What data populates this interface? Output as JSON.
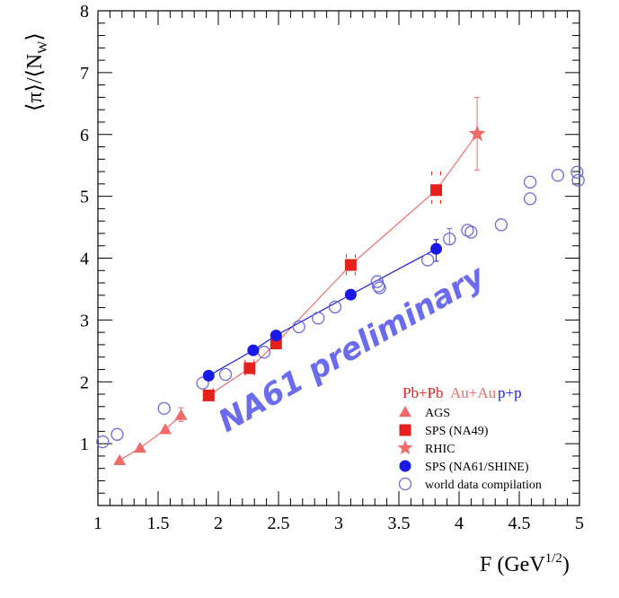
{
  "chart_data": {
    "type": "scatter",
    "xlabel": "F (GeV",
    "xlabel_sup": "1/2",
    "xlabel_end": ")",
    "ylabel": "⟨π⟩/⟨N",
    "ylabel_sub": "W",
    "ylabel_end": "⟩",
    "xlim": [
      1,
      5
    ],
    "ylim": [
      0,
      8
    ],
    "x_ticks": [
      "1",
      "1.5",
      "2",
      "2.5",
      "3",
      "3.5",
      "4",
      "4.5",
      "5"
    ],
    "y_ticks": [
      "1",
      "2",
      "3",
      "4",
      "5",
      "6",
      "7",
      "8"
    ],
    "watermark": "NA61 preliminary",
    "legend_header": [
      {
        "text": "Pb+Pb",
        "color": "#e8201c"
      },
      {
        "text": "Au+Au",
        "color": "#f06a6a"
      },
      {
        "text": "p+p",
        "color": "#1a1ae6"
      }
    ],
    "legend": [
      {
        "label": "AGS",
        "marker": "triangle",
        "color": "#f06a6a"
      },
      {
        "label": "SPS (NA49)",
        "marker": "square",
        "color": "#e8201c"
      },
      {
        "label": "RHIC",
        "marker": "star",
        "color": "#f06a6a"
      },
      {
        "label": "SPS (NA61/SHINE)",
        "marker": "filled-circle",
        "color": "#1a1ae6"
      },
      {
        "label": "world data compilation",
        "marker": "open-circle",
        "color": "#6b6bd9"
      }
    ],
    "series": [
      {
        "name": "world data compilation",
        "marker": "open-circle",
        "color": "#6b6bd9",
        "points": [
          [
            1.04,
            1.03
          ],
          [
            1.16,
            1.15
          ],
          [
            1.55,
            1.57
          ],
          [
            1.87,
            1.98
          ],
          [
            2.06,
            2.12
          ],
          [
            2.38,
            2.48
          ],
          [
            2.67,
            2.89
          ],
          [
            2.83,
            3.03
          ],
          [
            2.97,
            3.21
          ],
          [
            3.32,
            3.62
          ],
          [
            3.33,
            3.55
          ],
          [
            3.34,
            3.52
          ],
          [
            3.74,
            3.97
          ],
          [
            3.92,
            4.31
          ],
          [
            4.07,
            4.45
          ],
          [
            4.1,
            4.42
          ],
          [
            4.35,
            4.54
          ],
          [
            4.59,
            5.23
          ],
          [
            4.59,
            4.96
          ],
          [
            4.82,
            5.34
          ],
          [
            4.98,
            5.39
          ],
          [
            4.99,
            5.26
          ]
        ]
      },
      {
        "name": "AGS",
        "marker": "triangle",
        "color": "#f06a6a",
        "line": true,
        "points": [
          [
            1.18,
            0.73
          ],
          [
            1.35,
            0.93
          ],
          [
            1.56,
            1.23
          ],
          [
            1.69,
            1.46
          ]
        ]
      },
      {
        "name": "SPS (NA49)",
        "marker": "square",
        "color": "#e8201c",
        "line": true,
        "line_color": "#f06a6a",
        "points": [
          [
            1.92,
            1.78
          ],
          [
            2.26,
            2.22
          ],
          [
            2.48,
            2.62
          ],
          [
            3.1,
            3.89
          ],
          [
            3.81,
            5.1
          ]
        ]
      },
      {
        "name": "RHIC",
        "marker": "star",
        "color": "#f06a6a",
        "points": [
          [
            4.15,
            6.01
          ]
        ]
      },
      {
        "name": "SPS (NA61/SHINE)",
        "marker": "filled-circle",
        "color": "#1a1ae6",
        "line": true,
        "points": [
          [
            1.92,
            2.1
          ],
          [
            2.29,
            2.51
          ],
          [
            2.48,
            2.75
          ],
          [
            3.1,
            3.41
          ],
          [
            3.81,
            4.15
          ]
        ]
      }
    ]
  }
}
